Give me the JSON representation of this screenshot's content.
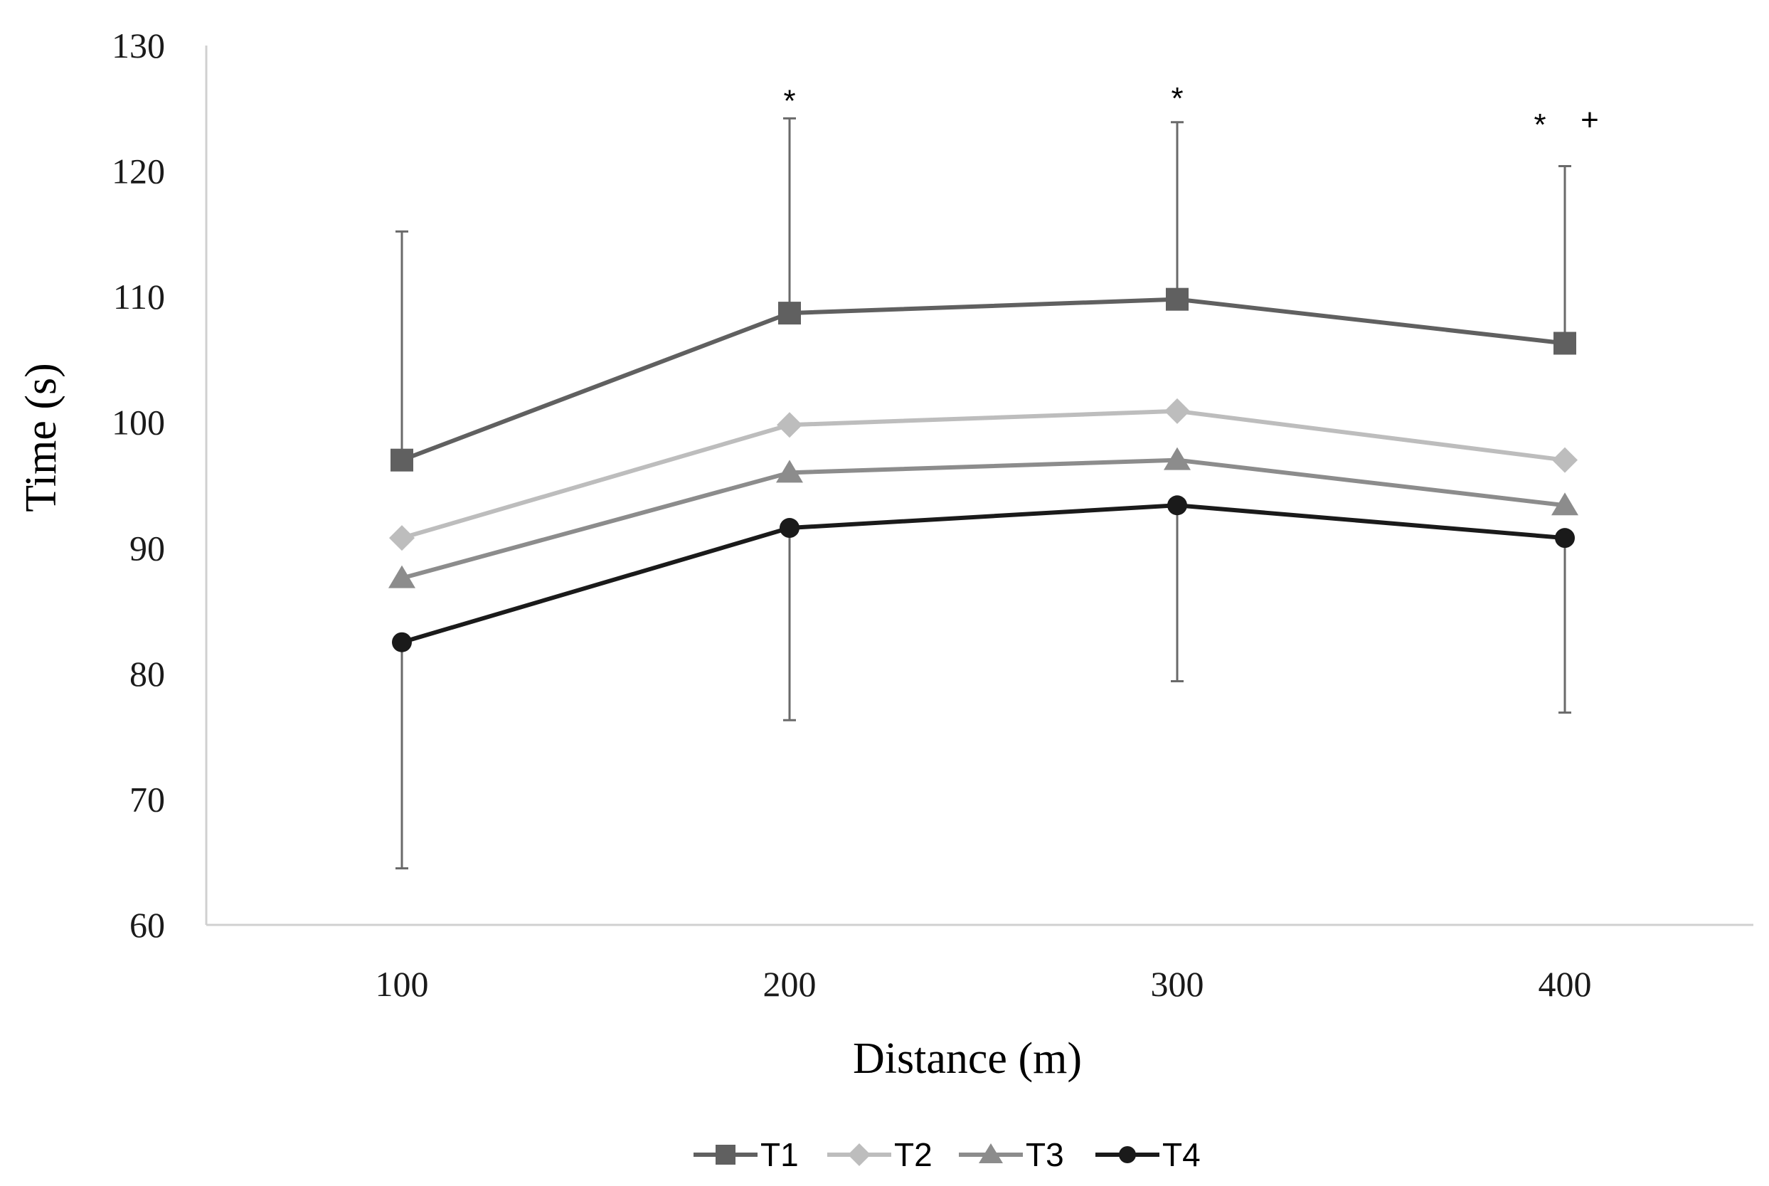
{
  "chart_data": {
    "type": "line",
    "title": "",
    "xlabel": "Distance (m)",
    "ylabel": "Time (s)",
    "x": [
      100,
      200,
      300,
      400
    ],
    "ylim": [
      60,
      130
    ],
    "yticks": [
      60,
      70,
      80,
      90,
      100,
      110,
      120,
      130
    ],
    "grid": false,
    "legend_position": "bottom",
    "series": [
      {
        "name": "T1",
        "values": [
          97.0,
          108.7,
          109.8,
          106.3
        ],
        "marker": "square",
        "color": "#606060",
        "error_upper": [
          115.2,
          124.2,
          123.9,
          120.4
        ]
      },
      {
        "name": "T2",
        "values": [
          90.8,
          99.8,
          100.9,
          97.0
        ],
        "marker": "diamond",
        "color": "#bdbdbd"
      },
      {
        "name": "T3",
        "values": [
          87.6,
          96.0,
          97.0,
          93.4
        ],
        "marker": "triangle",
        "color": "#8c8c8c"
      },
      {
        "name": "T4",
        "values": [
          82.5,
          91.6,
          93.4,
          90.8
        ],
        "marker": "circle",
        "color": "#1a1a1a",
        "error_lower": [
          64.5,
          76.3,
          79.4,
          76.9
        ]
      }
    ],
    "annotations": [
      {
        "x": 200,
        "y": 125.9,
        "text": "*"
      },
      {
        "x": 300,
        "y": 126.1,
        "text": "*"
      },
      {
        "x": 400,
        "y": 124.0,
        "text": "*",
        "offset": "left"
      },
      {
        "x": 400,
        "y": 124.4,
        "text": "+",
        "offset": "right"
      }
    ]
  }
}
